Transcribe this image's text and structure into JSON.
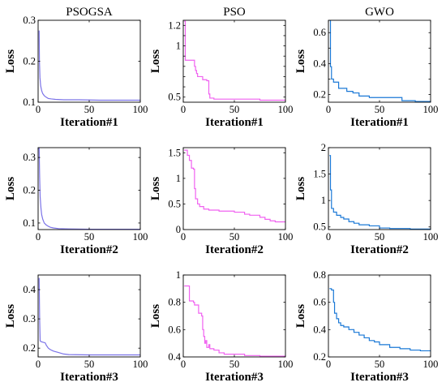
{
  "column_titles": [
    "PSOGSA",
    "PSO",
    "GWO"
  ],
  "colors": {
    "PSOGSA": "#7b73e8",
    "PSO": "#f062f0",
    "GWO": "#1a78d6",
    "axis": "#000000"
  },
  "chart_data": [
    {
      "type": "line",
      "title": "PSOGSA",
      "xlabel": "Iteration#1",
      "ylabel": "Loss",
      "xlim": [
        0,
        100
      ],
      "ylim": [
        0.1,
        0.3
      ],
      "xticks": [
        0,
        50,
        100
      ],
      "xtick_labels": [
        "0",
        "50",
        "100"
      ],
      "yticks": [
        0.1,
        0.2,
        0.3
      ],
      "ytick_labels": [
        "0.1",
        "0.2",
        "0.3"
      ],
      "series": [
        {
          "color": "#7b73e8",
          "step": false,
          "x": [
            1,
            1.3,
            1.8,
            2.5,
            3.5,
            4.5,
            6,
            8,
            10,
            13,
            17,
            25,
            40,
            60,
            100
          ],
          "y": [
            0.275,
            0.2,
            0.16,
            0.14,
            0.128,
            0.121,
            0.116,
            0.112,
            0.109,
            0.108,
            0.107,
            0.106,
            0.106,
            0.105,
            0.105
          ]
        }
      ]
    },
    {
      "type": "line",
      "title": "PSO",
      "xlabel": "Iteration#1",
      "ylabel": "Loss",
      "xlim": [
        0,
        100
      ],
      "ylim": [
        0.45,
        1.25
      ],
      "xticks": [
        0,
        50,
        100
      ],
      "xtick_labels": [
        "0",
        "50",
        "100"
      ],
      "yticks": [
        0.5,
        0.6,
        0.7,
        0.8,
        0.9,
        1,
        1.1,
        1.2
      ],
      "ytick_labels": [
        "0.5",
        "",
        "",
        "",
        "",
        "1",
        "",
        "1.2"
      ],
      "series": [
        {
          "color": "#f062f0",
          "step": true,
          "x": [
            1,
            2,
            3,
            4,
            10,
            11,
            12,
            13,
            14,
            18,
            19,
            22,
            23,
            25,
            26,
            30,
            50,
            75,
            90,
            100
          ],
          "y": [
            1.24,
            0.86,
            0.86,
            0.86,
            0.86,
            0.8,
            0.76,
            0.73,
            0.7,
            0.7,
            0.67,
            0.67,
            0.66,
            0.53,
            0.49,
            0.48,
            0.48,
            0.47,
            0.47,
            0.47
          ]
        }
      ]
    },
    {
      "type": "line",
      "title": "GWO",
      "xlabel": "Iteration#1",
      "ylabel": "Loss",
      "xlim": [
        0,
        100
      ],
      "ylim": [
        0.15,
        0.68
      ],
      "xticks": [
        0,
        50,
        100
      ],
      "xtick_labels": [
        "0",
        "50",
        "100"
      ],
      "yticks": [
        0.2,
        0.3,
        0.4,
        0.5,
        0.6
      ],
      "ytick_labels": [
        "0.2",
        "",
        "0.4",
        "",
        "0.6"
      ],
      "series": [
        {
          "color": "#1a78d6",
          "step": true,
          "x": [
            1,
            2,
            3,
            5,
            10,
            18,
            24,
            30,
            40,
            60,
            72,
            85,
            100
          ],
          "y": [
            0.68,
            0.38,
            0.3,
            0.28,
            0.24,
            0.22,
            0.21,
            0.19,
            0.18,
            0.18,
            0.16,
            0.155,
            0.15
          ]
        }
      ]
    },
    {
      "type": "line",
      "title": "",
      "xlabel": "Iteration#2",
      "ylabel": "Loss",
      "xlim": [
        0,
        100
      ],
      "ylim": [
        0.08,
        0.33
      ],
      "xticks": [
        0,
        50,
        100
      ],
      "xtick_labels": [
        "0",
        "50",
        "100"
      ],
      "yticks": [
        0.1,
        0.2,
        0.3
      ],
      "ytick_labels": [
        "0.1",
        "0.2",
        "0.3"
      ],
      "series": [
        {
          "color": "#7b73e8",
          "step": false,
          "x": [
            1,
            1.5,
            2,
            2.8,
            3.5,
            4.5,
            6,
            8,
            10,
            12,
            15,
            20,
            30,
            50,
            100
          ],
          "y": [
            0.33,
            0.24,
            0.18,
            0.145,
            0.125,
            0.112,
            0.1,
            0.094,
            0.09,
            0.087,
            0.085,
            0.083,
            0.082,
            0.081,
            0.081
          ]
        }
      ]
    },
    {
      "type": "line",
      "title": "",
      "xlabel": "Iteration#2",
      "ylabel": "Loss",
      "xlim": [
        0,
        100
      ],
      "ylim": [
        0,
        1.6
      ],
      "xticks": [
        0,
        50,
        100
      ],
      "xtick_labels": [
        "0",
        "50",
        "100"
      ],
      "yticks": [
        0,
        0.5,
        1,
        1.5
      ],
      "ytick_labels": [
        "0",
        "0.5",
        "1",
        "1.5"
      ],
      "series": [
        {
          "color": "#f062f0",
          "step": true,
          "x": [
            1,
            3,
            4,
            6,
            8,
            10,
            11,
            12,
            14,
            16,
            20,
            25,
            35,
            50,
            60,
            65,
            75,
            80,
            85,
            90,
            100
          ],
          "y": [
            1.55,
            1.55,
            1.45,
            1.35,
            1.2,
            1.18,
            0.8,
            0.6,
            0.5,
            0.45,
            0.4,
            0.38,
            0.36,
            0.34,
            0.3,
            0.28,
            0.24,
            0.2,
            0.17,
            0.15,
            0.15
          ]
        }
      ]
    },
    {
      "type": "line",
      "title": "",
      "xlabel": "Iteration#2",
      "ylabel": "Loss",
      "xlim": [
        0,
        100
      ],
      "ylim": [
        0.45,
        2
      ],
      "xticks": [
        0,
        50,
        100
      ],
      "xtick_labels": [
        "0",
        "50",
        "100"
      ],
      "yticks": [
        0.5,
        1,
        1.5,
        2
      ],
      "ytick_labels": [
        "0.5",
        "1",
        "1.5",
        "2"
      ],
      "series": [
        {
          "color": "#1a78d6",
          "step": true,
          "x": [
            1,
            2,
            3,
            5,
            8,
            12,
            15,
            20,
            25,
            30,
            40,
            50,
            60,
            80,
            100
          ],
          "y": [
            1.85,
            1.2,
            0.85,
            0.78,
            0.72,
            0.68,
            0.65,
            0.6,
            0.57,
            0.54,
            0.52,
            0.48,
            0.47,
            0.46,
            0.46
          ]
        }
      ]
    },
    {
      "type": "line",
      "title": "",
      "xlabel": "Iteration#3",
      "ylabel": "Loss",
      "xlim": [
        0,
        100
      ],
      "ylim": [
        0.17,
        0.45
      ],
      "xticks": [
        0,
        50,
        100
      ],
      "xtick_labels": [
        "0",
        "50",
        "100"
      ],
      "yticks": [
        0.2,
        0.3,
        0.4
      ],
      "ytick_labels": [
        "0.2",
        "0.3",
        "0.4"
      ],
      "series": [
        {
          "color": "#7b73e8",
          "step": false,
          "x": [
            1,
            1.5,
            2,
            3,
            5,
            7,
            8,
            10,
            12,
            15,
            20,
            25,
            30,
            50,
            100
          ],
          "y": [
            0.44,
            0.3,
            0.225,
            0.222,
            0.22,
            0.218,
            0.21,
            0.2,
            0.195,
            0.19,
            0.185,
            0.18,
            0.178,
            0.177,
            0.177
          ]
        }
      ]
    },
    {
      "type": "line",
      "title": "",
      "xlabel": "Iteration#3",
      "ylabel": "Loss",
      "xlim": [
        0,
        100
      ],
      "ylim": [
        0.4,
        1
      ],
      "xticks": [
        0,
        50,
        100
      ],
      "xtick_labels": [
        "0",
        "50",
        "100"
      ],
      "yticks": [
        0.4,
        0.6,
        0.8,
        1
      ],
      "ytick_labels": [
        "0.4",
        "0.6",
        "0.8",
        "1"
      ],
      "series": [
        {
          "color": "#f062f0",
          "step": true,
          "x": [
            1,
            5,
            6,
            10,
            11,
            14,
            15,
            18,
            19,
            20,
            21,
            22,
            23,
            25,
            26,
            30,
            35,
            40,
            45,
            60,
            75,
            100
          ],
          "y": [
            0.92,
            0.92,
            0.81,
            0.8,
            0.78,
            0.78,
            0.72,
            0.7,
            0.6,
            0.55,
            0.5,
            0.52,
            0.47,
            0.49,
            0.46,
            0.45,
            0.43,
            0.42,
            0.42,
            0.41,
            0.405,
            0.405
          ]
        }
      ]
    },
    {
      "type": "line",
      "title": "",
      "xlabel": "Iteration#3",
      "ylabel": "Loss",
      "xlim": [
        0,
        100
      ],
      "ylim": [
        0.2,
        0.8
      ],
      "xticks": [
        0,
        50,
        100
      ],
      "xtick_labels": [
        "0",
        "50",
        "100"
      ],
      "yticks": [
        0.2,
        0.4,
        0.6,
        0.8
      ],
      "ytick_labels": [
        "0.2",
        "0.4",
        "0.6",
        "0.8"
      ],
      "series": [
        {
          "color": "#1a78d6",
          "step": true,
          "x": [
            1,
            3,
            5,
            6,
            8,
            10,
            12,
            15,
            20,
            25,
            30,
            35,
            40,
            45,
            50,
            60,
            70,
            80,
            90,
            100
          ],
          "y": [
            0.7,
            0.69,
            0.6,
            0.52,
            0.48,
            0.45,
            0.43,
            0.42,
            0.4,
            0.38,
            0.36,
            0.34,
            0.32,
            0.31,
            0.29,
            0.27,
            0.26,
            0.25,
            0.245,
            0.24
          ]
        }
      ]
    }
  ]
}
